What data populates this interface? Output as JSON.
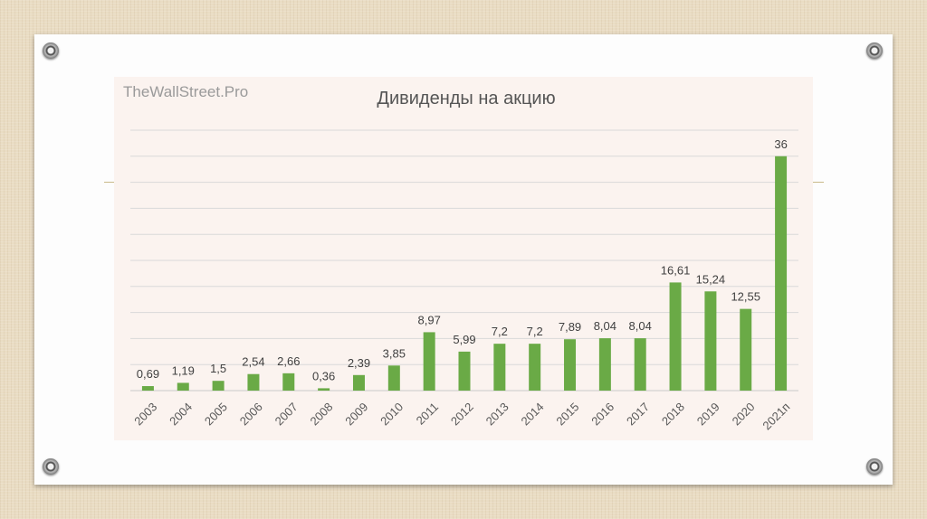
{
  "watermark": "TheWallStreet.Pro",
  "chart_data": {
    "type": "bar",
    "title": "Дивиденды на акцию",
    "xlabel": "",
    "ylabel": "",
    "categories": [
      "2003",
      "2004",
      "2005",
      "2006",
      "2007",
      "2008",
      "2009",
      "2010",
      "2011",
      "2012",
      "2013",
      "2014",
      "2015",
      "2016",
      "2017",
      "2018",
      "2019",
      "2020",
      "2021п"
    ],
    "values": [
      0.69,
      1.19,
      1.5,
      2.54,
      2.66,
      0.36,
      2.39,
      3.85,
      8.97,
      5.99,
      7.2,
      7.2,
      7.89,
      8.04,
      8.04,
      16.61,
      15.24,
      12.55,
      36
    ],
    "value_labels": [
      "0,69",
      "1,19",
      "1,5",
      "2,54",
      "2,66",
      "0,36",
      "2,39",
      "3,85",
      "8,97",
      "5,99",
      "7,2",
      "7,2",
      "7,89",
      "8,04",
      "8,04",
      "16,61",
      "15,24",
      "12,55",
      "36"
    ],
    "ylim": [
      0,
      40
    ],
    "grid": true,
    "legend": "none",
    "bar_color": "#6aaa46",
    "grid_color": "#d9d9d9",
    "label_color": "#404040",
    "tick_label_color": "#595959"
  }
}
